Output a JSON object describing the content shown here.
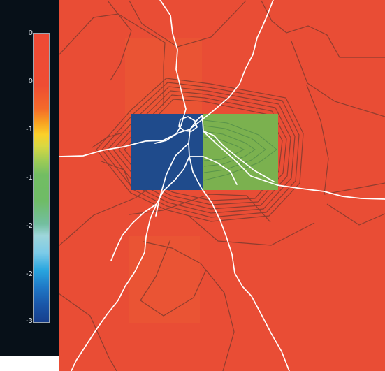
{
  "colorbar": {
    "ticks": [
      "0",
      "0",
      "-1",
      "-1",
      "-2",
      "-2",
      "-3"
    ]
  },
  "colors": {
    "background": "#e94d35",
    "blue_region": "#1f4b8c",
    "green_region": "#7bb14f",
    "contour": "#6d372d",
    "road": "#ffffff",
    "colorbar_panel": "#071018"
  }
}
